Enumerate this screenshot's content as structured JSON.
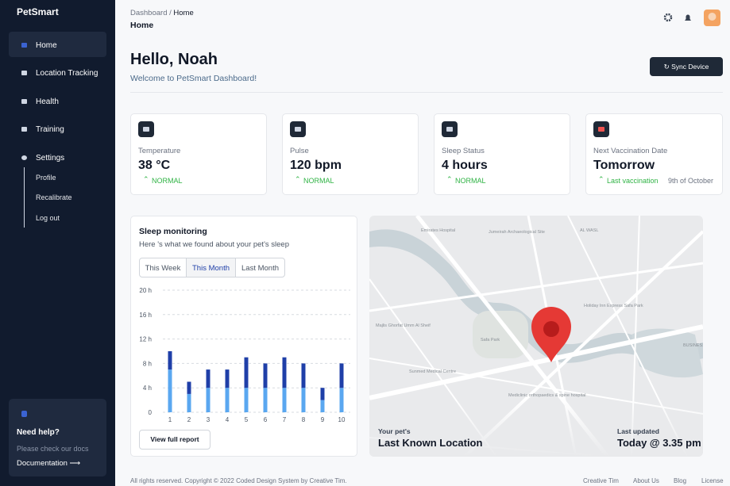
{
  "sidebar": {
    "brand": "PetSmart",
    "nav": [
      "Home",
      "Location Tracking",
      "Health",
      "Training",
      "Settings"
    ],
    "submenu": [
      "Profile",
      "Recalibrate",
      "Log out"
    ],
    "help": {
      "title": "Need help?",
      "text": "Please check our docs",
      "link": "Documentation"
    }
  },
  "header": {
    "breadcrumb": [
      "Dashboard /",
      "Home"
    ],
    "title": "Home"
  },
  "greeting": {
    "title": "Hello, Noah",
    "subtitle": "Welcome to PetSmart Dashboard!",
    "button": "Sync Device"
  },
  "cards": [
    {
      "label": "Temperature",
      "value": "38 °C",
      "status": "NORMAL"
    },
    {
      "label": "Pulse",
      "value": "120 bpm",
      "status": "NORMAL"
    },
    {
      "label": "Sleep Status",
      "value": "4 hours",
      "status": "NORMAL"
    },
    {
      "label": "Next Vaccination Date",
      "value": "Tomorrow",
      "status": "Last vaccination",
      "note": "9th of October"
    }
  ],
  "sleep": {
    "title": "Sleep monitoring",
    "subtitle": "Here 's what we found about your pet's sleep",
    "tabs": [
      "This Week",
      "This Month",
      "Last Month"
    ],
    "button": "View full report",
    "chart": {
      "type": "bar",
      "stacked": true,
      "categories": [
        "1",
        "2",
        "3",
        "4",
        "5",
        "6",
        "7",
        "8",
        "9",
        "10"
      ],
      "series": [
        {
          "color": "#5aa7f0",
          "values": [
            7,
            3,
            4,
            4,
            4,
            4,
            4,
            4,
            2,
            4
          ]
        },
        {
          "color": "#1f3fa8",
          "values": [
            3,
            2,
            3,
            3,
            5,
            4,
            5,
            4,
            2,
            4
          ]
        }
      ],
      "ylim": [
        0,
        20
      ],
      "yticks": [
        0,
        {
          "value": 4,
          "label": "4 h"
        },
        {
          "value": 8,
          "label": "8 h"
        },
        {
          "value": 12,
          "label": "12 h"
        },
        {
          "value": 16,
          "label": "16 h"
        },
        {
          "value": 20,
          "label": "20 h"
        }
      ],
      "grid": true
    }
  },
  "map": {
    "labels": [
      "Emirates Hospital",
      "Jumeirah Archaeological Site",
      "AL WASL",
      "Holiday Inn Express Safa Park",
      "Safa Park",
      "Majlis Ghorfat Umm Al Sheif",
      "Sunmed Medical Centre",
      "Mediclinic orthopaedics & spine hospital",
      "BUSINESS BAY"
    ],
    "left_caption": "Your pet's",
    "left_title": "Last Known Location",
    "right_caption": "Last updated",
    "right_title": "Today @ 3.35 pm"
  },
  "footer": {
    "copyright": "All rights reserved. Copyright © 2022 Coded Design System by Creative Tim.",
    "links": [
      "Creative Tim",
      "About Us",
      "Blog",
      "License"
    ]
  }
}
